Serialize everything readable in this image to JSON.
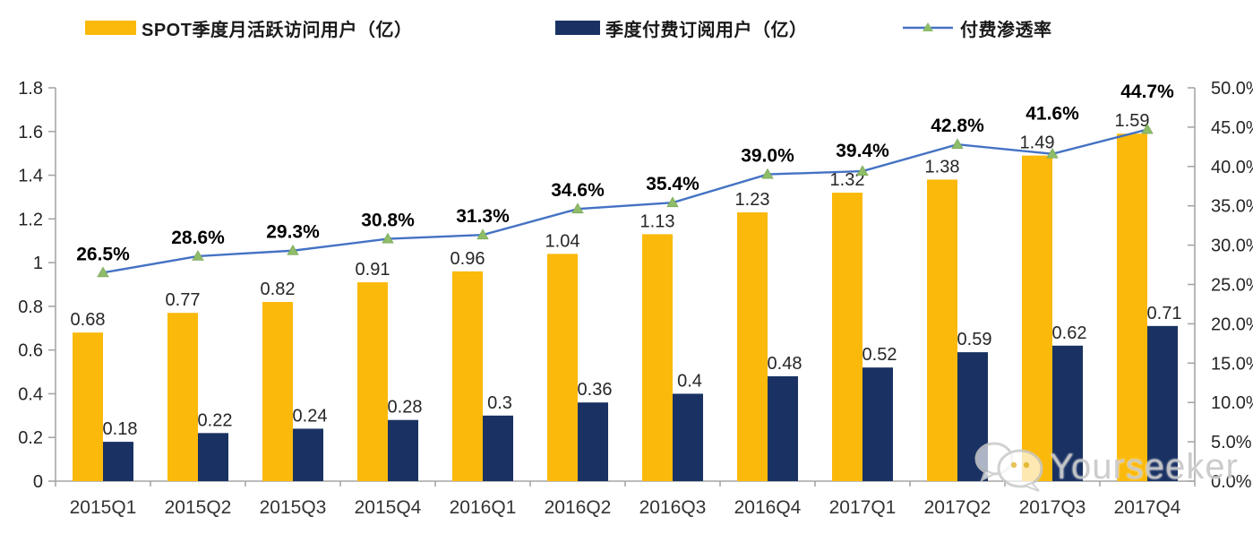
{
  "legend": {
    "mau_label": "SPOT季度月活跃访问用户（亿）",
    "subs_label": "季度付费订阅用户（亿）",
    "penetration_label": "付费渗透率"
  },
  "watermark": {
    "text": "Yourseeker",
    "icon": "wechat-icon"
  },
  "colors": {
    "mau_bar": "#FBB90B",
    "subs_bar": "#1A3263",
    "line": "#4472C4",
    "marker": "#8FBC69",
    "axis": "#A6A6A6",
    "axis_text": "#262626",
    "value_label": "#262626",
    "pct_label": "#000000"
  },
  "chart_data": {
    "type": "bar",
    "subtype": "grouped-bars-with-line",
    "categories": [
      "2015Q1",
      "2015Q2",
      "2015Q3",
      "2015Q4",
      "2016Q1",
      "2016Q2",
      "2016Q3",
      "2016Q4",
      "2017Q1",
      "2017Q2",
      "2017Q3",
      "2017Q4"
    ],
    "series": [
      {
        "name": "SPOT季度月活跃访问用户（亿）",
        "type": "bar",
        "axis": "left",
        "color_key": "mau_bar",
        "values": [
          0.68,
          0.77,
          0.82,
          0.91,
          0.96,
          1.04,
          1.13,
          1.23,
          1.32,
          1.38,
          1.49,
          1.59
        ],
        "labels": [
          "0.68",
          "0.77",
          "0.82",
          "0.91",
          "0.96",
          "1.04",
          "1.13",
          "1.23",
          "1.32",
          "1.38",
          "1.49",
          "1.59"
        ]
      },
      {
        "name": "季度付费订阅用户（亿）",
        "type": "bar",
        "axis": "left",
        "color_key": "subs_bar",
        "values": [
          0.18,
          0.22,
          0.24,
          0.28,
          0.3,
          0.36,
          0.4,
          0.48,
          0.52,
          0.59,
          0.62,
          0.71
        ],
        "labels": [
          "0.18",
          "0.22",
          "0.24",
          "0.28",
          "0.3",
          "0.36",
          "0.4",
          "0.48",
          "0.52",
          "0.59",
          "0.62",
          "0.71"
        ]
      },
      {
        "name": "付费渗透率",
        "type": "line",
        "axis": "right",
        "color_key": "line",
        "marker": "triangle",
        "values": [
          26.5,
          28.6,
          29.3,
          30.8,
          31.3,
          34.6,
          35.4,
          39.0,
          39.4,
          42.8,
          41.6,
          44.7
        ],
        "labels": [
          "26.5%",
          "28.6%",
          "29.3%",
          "30.8%",
          "31.3%",
          "34.6%",
          "35.4%",
          "39.0%",
          "39.4%",
          "42.8%",
          "41.6%",
          "44.7%"
        ]
      }
    ],
    "left_axis": {
      "min": 0,
      "max": 1.8,
      "step": 0.2,
      "tick_labels": [
        "0",
        "0.2",
        "0.4",
        "0.6",
        "0.8",
        "1",
        "1.2",
        "1.4",
        "1.6",
        "1.8"
      ]
    },
    "right_axis": {
      "min": 0,
      "max": 50,
      "step": 5,
      "tick_labels": [
        "0.0%",
        "5.0%",
        "10.0%",
        "15.0%",
        "20.0%",
        "25.0%",
        "30.0%",
        "35.0%",
        "40.0%",
        "45.0%",
        "50.0%"
      ]
    },
    "grid": "off",
    "legend_position": "top",
    "title": ""
  }
}
